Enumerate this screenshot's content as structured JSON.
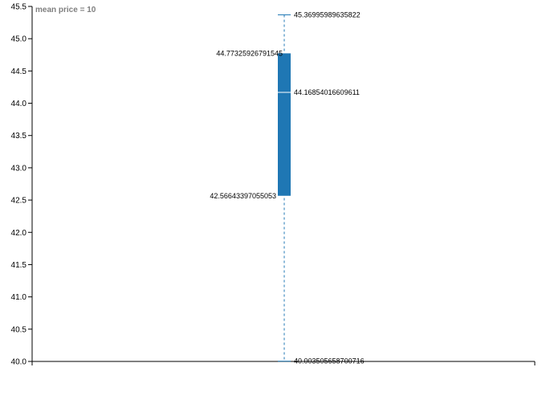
{
  "chart_data": {
    "type": "boxplot",
    "title": "mean price = 10",
    "xlabel": "",
    "ylabel": "",
    "ylim": [
      40.0,
      45.5
    ],
    "yticks": [
      40.0,
      40.5,
      41.0,
      41.5,
      42.0,
      42.5,
      43.0,
      43.5,
      44.0,
      44.5,
      45.0,
      45.5
    ],
    "ytick_labels": [
      "40.0",
      "40.5",
      "41.0",
      "41.5",
      "42.0",
      "42.5",
      "43.0",
      "43.5",
      "44.0",
      "44.5",
      "45.0",
      "45.5"
    ],
    "box": {
      "min": 40.00350565870072,
      "q1": 42.56643397055053,
      "median": 44.16854016609611,
      "q3": 44.77325926791545,
      "max": 45.36995989635822,
      "labels": {
        "min": "40.003505658700716",
        "q1": "42.56643397055053",
        "median": "44.16854016609611",
        "q3": "44.77325926791545",
        "max": "45.36995989635822"
      }
    },
    "colors": {
      "box": "#1f77b4",
      "whisker": "#1f77b4",
      "median": "#ffffff",
      "axis": "#000000",
      "title": "#7f7f7f"
    },
    "grid": false,
    "legend": "none"
  }
}
